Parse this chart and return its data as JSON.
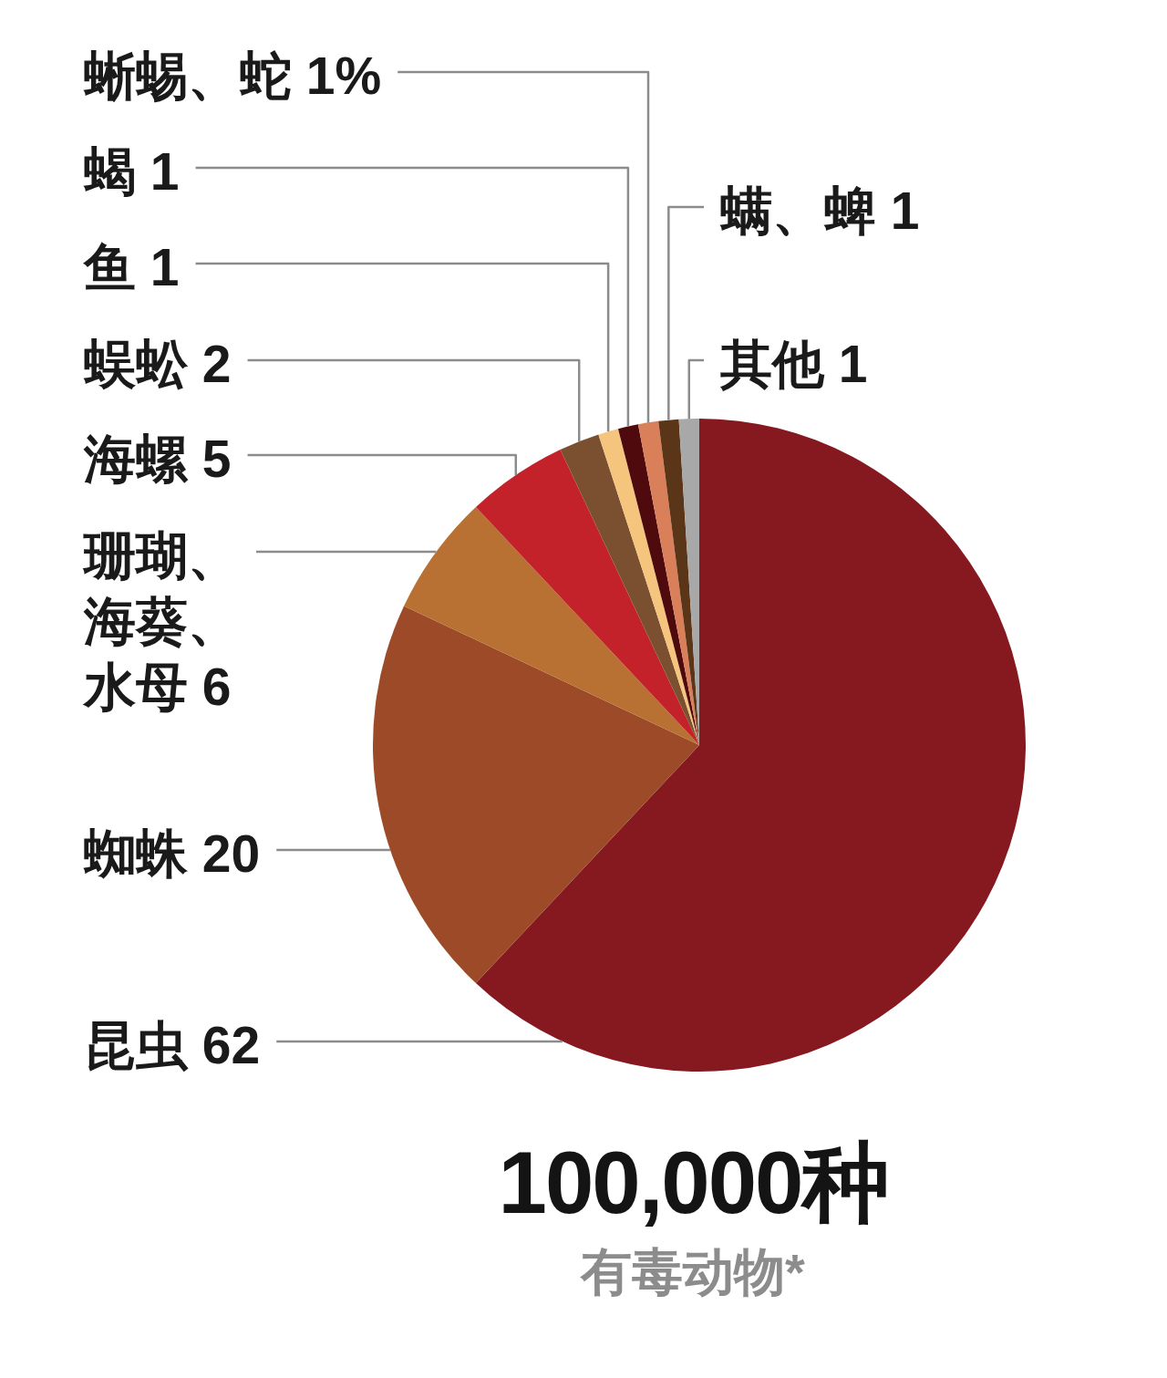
{
  "chart_data": {
    "type": "pie",
    "title": "100,000种",
    "subtitle": "有毒动物*",
    "categories": [
      "昆虫",
      "蜘蛛",
      "珊瑚、海葵、水母",
      "海螺",
      "蜈蚣",
      "鱼",
      "蝎",
      "蜥蜴、蛇",
      "螨、蜱",
      "其他"
    ],
    "values": [
      62,
      20,
      6,
      5,
      2,
      1,
      1,
      1,
      1,
      1
    ],
    "value_labels": [
      "62",
      "20",
      "6",
      "5",
      "2",
      "1",
      "1",
      "1%",
      "1",
      "1"
    ],
    "colors": [
      "#861820",
      "#9c4a27",
      "#b87132",
      "#c4222a",
      "#7a5030",
      "#f5c57e",
      "#4e0a0c",
      "#d9805a",
      "#5a3518",
      "#a8a8a8"
    ]
  }
}
